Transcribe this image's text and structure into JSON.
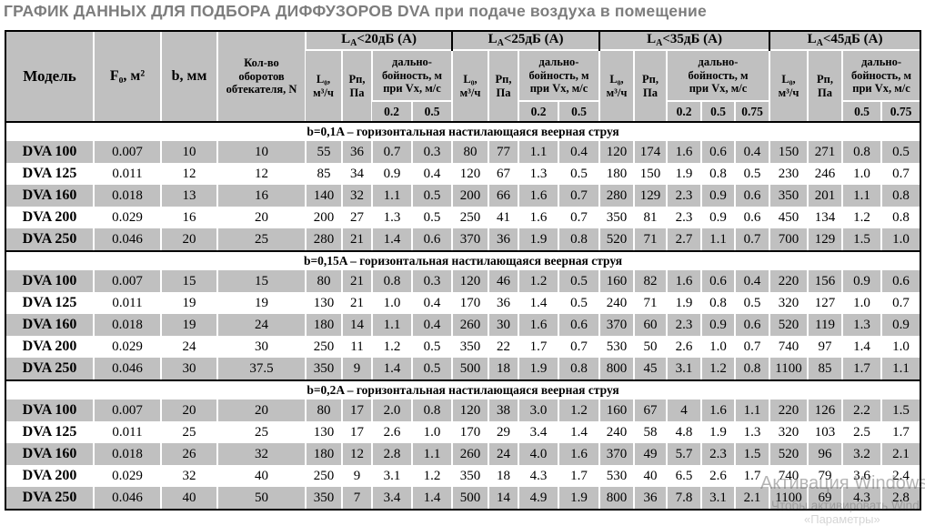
{
  "page_title": "ГРАФИК ДАННЫХ ДЛЯ ПОДБОРА ДИФФУЗОРОВ DVA при подаче воздуха в помещение",
  "table": {
    "columns": {
      "model": "Модель",
      "f0": "F₀, м²",
      "b": "b, мм",
      "n": "Кол-во\nоборотов\nобтекателя, N"
    },
    "groups": [
      {
        "main": "L",
        "sub": "A",
        "cond": "<20дБ (А)",
        "flow": "L₀,\nм³/ч",
        "pressure": "Рп,\nПа",
        "range": "дально-\nбойность, м\nпри Vx, м/с",
        "speeds": [
          "0.2",
          "0.5"
        ]
      },
      {
        "main": "L",
        "sub": "A",
        "cond": "<25дБ (А)",
        "flow": "L₀,\nм³/ч",
        "pressure": "Рп,\nПа",
        "range": "дально-\nбойность, м\nпри Vx, м/с",
        "speeds": [
          "0.2",
          "0.5"
        ]
      },
      {
        "main": "L",
        "sub": "A",
        "cond": "<35дБ (А)",
        "flow": "L₀,\nм³/ч",
        "pressure": "Рп,\nПа",
        "range": "дально-\nбойность, м\nпри Vx, м/с",
        "speeds": [
          "0.2",
          "0.5",
          "0.75"
        ]
      },
      {
        "main": "L",
        "sub": "A",
        "cond": "<45дБ (А)",
        "flow": "L₀,\nм³/ч",
        "pressure": "Рп,\nПа",
        "range": "дально-\nбойность, м\nпри Vx, м/с",
        "speeds": [
          "0.5",
          "0.75"
        ]
      }
    ],
    "sections": [
      {
        "title": "b=0,1A  – горизонтальная настилающаяся веерная струя",
        "rows": [
          {
            "model": "DVA 100",
            "cells": [
              "0.007",
              "10",
              "10",
              "55",
              "36",
              "0.7",
              "0.3",
              "80",
              "77",
              "1.1",
              "0.4",
              "120",
              "174",
              "1.6",
              "0.6",
              "0.4",
              "150",
              "271",
              "0.8",
              "0.5"
            ]
          },
          {
            "model": "DVA 125",
            "cells": [
              "0.011",
              "12",
              "12",
              "85",
              "34",
              "0.9",
              "0.4",
              "120",
              "67",
              "1.3",
              "0.5",
              "180",
              "150",
              "1.9",
              "0.8",
              "0.5",
              "230",
              "246",
              "1.0",
              "0.7"
            ]
          },
          {
            "model": "DVA 160",
            "cells": [
              "0.018",
              "13",
              "16",
              "140",
              "32",
              "1.1",
              "0.5",
              "200",
              "66",
              "1.6",
              "0.7",
              "280",
              "129",
              "2.3",
              "0.9",
              "0.6",
              "350",
              "201",
              "1.1",
              "0.8"
            ]
          },
          {
            "model": "DVA 200",
            "cells": [
              "0.029",
              "16",
              "20",
              "200",
              "27",
              "1.3",
              "0.5",
              "250",
              "41",
              "1.6",
              "0.7",
              "350",
              "81",
              "2.3",
              "0.9",
              "0.6",
              "450",
              "134",
              "1.2",
              "0.8"
            ]
          },
          {
            "model": "DVA 250",
            "cells": [
              "0.046",
              "20",
              "25",
              "280",
              "21",
              "1.4",
              "0.6",
              "370",
              "36",
              "1.9",
              "0.8",
              "520",
              "71",
              "2.7",
              "1.1",
              "0.7",
              "700",
              "129",
              "1.5",
              "1.0"
            ]
          }
        ]
      },
      {
        "title": "b=0,15A  – горизонтальная настилающаяся веерная струя",
        "rows": [
          {
            "model": "DVA 100",
            "cells": [
              "0.007",
              "15",
              "15",
              "80",
              "21",
              "0.8",
              "0.3",
              "120",
              "46",
              "1.2",
              "0.5",
              "160",
              "82",
              "1.6",
              "0.6",
              "0.4",
              "220",
              "156",
              "0.9",
              "0.6"
            ]
          },
          {
            "model": "DVA 125",
            "cells": [
              "0.011",
              "19",
              "19",
              "130",
              "21",
              "1.0",
              "0.4",
              "170",
              "36",
              "1.4",
              "0.5",
              "240",
              "71",
              "1.9",
              "0.8",
              "0.5",
              "320",
              "127",
              "1.0",
              "0.7"
            ]
          },
          {
            "model": "DVA 160",
            "cells": [
              "0.018",
              "19",
              "24",
              "180",
              "14",
              "1.1",
              "0.4",
              "260",
              "30",
              "1.6",
              "0.6",
              "370",
              "60",
              "2.3",
              "0.9",
              "0.6",
              "520",
              "119",
              "1.3",
              "0.9"
            ]
          },
          {
            "model": "DVA 200",
            "cells": [
              "0.029",
              "24",
              "30",
              "250",
              "11",
              "1.2",
              "0.5",
              "350",
              "22",
              "1.7",
              "0.7",
              "530",
              "50",
              "2.6",
              "1.0",
              "0.7",
              "740",
              "97",
              "1.4",
              "1.0"
            ]
          },
          {
            "model": "DVA 250",
            "cells": [
              "0.046",
              "30",
              "37.5",
              "350",
              "9",
              "1.4",
              "0.5",
              "500",
              "18",
              "1.9",
              "0.8",
              "800",
              "45",
              "3.1",
              "1.2",
              "0.8",
              "1100",
              "85",
              "1.7",
              "1.1"
            ]
          }
        ]
      },
      {
        "title": "b=0,2A  – горизонтальная настилающаяся веерная струя",
        "rows": [
          {
            "model": "DVA 100",
            "cells": [
              "0.007",
              "20",
              "20",
              "80",
              "17",
              "2.0",
              "0.8",
              "120",
              "38",
              "3.0",
              "1.2",
              "160",
              "67",
              "4",
              "1.6",
              "1.1",
              "220",
              "126",
              "2.2",
              "1.5"
            ]
          },
          {
            "model": "DVA 125",
            "cells": [
              "0.011",
              "25",
              "25",
              "130",
              "17",
              "2.6",
              "1.0",
              "170",
              "29",
              "3.4",
              "1.4",
              "240",
              "58",
              "4.8",
              "1.9",
              "1.3",
              "320",
              "103",
              "2.5",
              "1.7"
            ]
          },
          {
            "model": "DVA 160",
            "cells": [
              "0.018",
              "26",
              "32",
              "180",
              "12",
              "2.8",
              "1.1",
              "260",
              "24",
              "4.0",
              "1.6",
              "370",
              "49",
              "5.7",
              "2.3",
              "1.5",
              "520",
              "96",
              "3.2",
              "2.1"
            ]
          },
          {
            "model": "DVA 200",
            "cells": [
              "0.029",
              "32",
              "40",
              "250",
              "9",
              "3.1",
              "1.2",
              "350",
              "18",
              "4.3",
              "1.7",
              "530",
              "40",
              "6.5",
              "2.6",
              "1.7",
              "740",
              "79",
              "3.6",
              "2.4"
            ]
          },
          {
            "model": "DVA 250",
            "cells": [
              "0.046",
              "40",
              "50",
              "350",
              "7",
              "3.4",
              "1.4",
              "500",
              "14",
              "4.9",
              "1.9",
              "800",
              "36",
              "7.8",
              "3.1",
              "2.1",
              "1100",
              "69",
              "4.3",
              "2.8"
            ]
          }
        ]
      }
    ]
  },
  "watermark": {
    "line1": "Активация Windows",
    "line2": "Чтобы активировать Wind",
    "line3": "«Параметры»"
  }
}
